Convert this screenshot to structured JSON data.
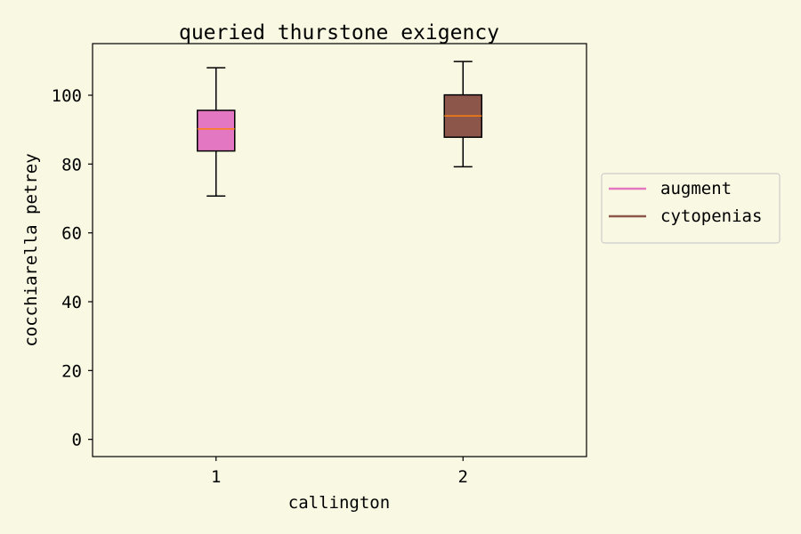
{
  "chart_data": {
    "type": "box",
    "title": "queried thurstone exigency",
    "xlabel": "callington",
    "ylabel": "cocchiarella petrey",
    "ylim": [
      -5,
      115
    ],
    "yticks": [
      0,
      20,
      40,
      60,
      80,
      100
    ],
    "categories": [
      "1",
      "2"
    ],
    "series": [
      {
        "name": "augment",
        "color": "#e377c2",
        "whisker_low": 70.7,
        "q1": 83.8,
        "median": 90.2,
        "q3": 95.6,
        "whisker_high": 108.0
      },
      {
        "name": "cytopenias",
        "color": "#8c564b",
        "whisker_low": 79.2,
        "q1": 87.8,
        "median": 94.0,
        "q3": 100.1,
        "whisker_high": 109.8
      }
    ],
    "median_color": "#ff7f0e",
    "grid": false,
    "legend_position": "right, outside plot"
  }
}
